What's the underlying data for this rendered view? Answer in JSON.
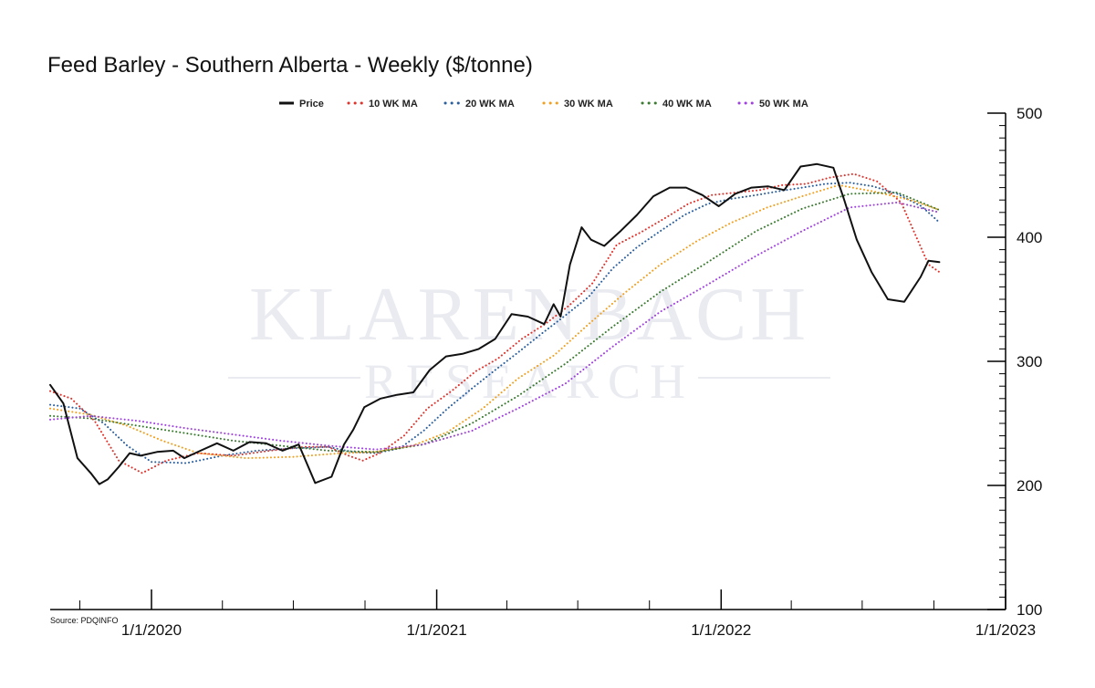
{
  "chart_data": {
    "type": "line",
    "title": "Feed Barley - Southern Alberta - Weekly ($/tonne)",
    "source": "Source: PDQINFO",
    "watermark": {
      "line1": "KLARENBACH",
      "line2": "RESEARCH"
    },
    "xlabel": "",
    "ylabel": "",
    "xlim": [
      "2019-08-24",
      "2023-01-01"
    ],
    "ylim": [
      100,
      500
    ],
    "y_ticks": [
      100,
      200,
      300,
      400,
      500
    ],
    "x_tick_labels": [
      {
        "date": "2020-01-01",
        "label": "1/1/2020"
      },
      {
        "date": "2021-01-01",
        "label": "1/1/2021"
      },
      {
        "date": "2022-01-01",
        "label": "1/1/2022"
      },
      {
        "date": "2023-01-01",
        "label": "1/1/2023"
      }
    ],
    "y_axis_position": "right",
    "grid": false,
    "legend_position": "top-center",
    "series": [
      {
        "name": "Price",
        "style": "solid",
        "color": "#111111",
        "x": [
          "2019-08-24",
          "2019-09-10",
          "2019-09-28",
          "2019-10-15",
          "2019-10-26",
          "2019-11-06",
          "2019-11-20",
          "2019-12-04",
          "2019-12-18",
          "2020-01-08",
          "2020-01-29",
          "2020-02-12",
          "2020-03-04",
          "2020-03-25",
          "2020-04-15",
          "2020-05-06",
          "2020-05-27",
          "2020-06-17",
          "2020-07-08",
          "2020-07-29",
          "2020-08-19",
          "2020-09-04",
          "2020-09-16",
          "2020-09-30",
          "2020-10-21",
          "2020-11-11",
          "2020-12-02",
          "2020-12-23",
          "2021-01-13",
          "2021-02-03",
          "2021-02-24",
          "2021-03-17",
          "2021-04-07",
          "2021-04-28",
          "2021-05-19",
          "2021-05-31",
          "2021-06-09",
          "2021-06-21",
          "2021-07-06",
          "2021-07-18",
          "2021-08-04",
          "2021-08-25",
          "2021-09-15",
          "2021-10-06",
          "2021-10-27",
          "2021-11-17",
          "2021-12-08",
          "2021-12-29",
          "2022-01-19",
          "2022-02-09",
          "2022-03-02",
          "2022-03-23",
          "2022-04-13",
          "2022-05-04",
          "2022-05-25",
          "2022-06-08",
          "2022-06-24",
          "2022-07-13",
          "2022-08-03",
          "2022-08-24",
          "2022-09-14",
          "2022-09-24",
          "2022-10-08"
        ],
        "values": [
          281,
          266,
          222,
          210,
          201,
          205,
          215,
          226,
          224,
          227,
          228,
          222,
          228,
          234,
          228,
          235,
          234,
          228,
          233,
          202,
          207,
          233,
          245,
          263,
          270,
          273,
          275,
          293,
          304,
          306,
          310,
          318,
          338,
          336,
          330,
          346,
          336,
          378,
          408,
          398,
          393,
          405,
          418,
          433,
          440,
          440,
          434,
          425,
          435,
          440,
          441,
          438,
          457,
          459,
          456,
          430,
          398,
          372,
          350,
          348,
          368,
          381,
          380
        ]
      },
      {
        "name": "10 WK MA",
        "style": "dotted",
        "color": "#e0312a",
        "x": [
          "2019-08-24",
          "2019-09-20",
          "2019-10-20",
          "2019-11-20",
          "2019-12-20",
          "2020-01-20",
          "2020-03-01",
          "2020-04-15",
          "2020-06-01",
          "2020-07-15",
          "2020-08-15",
          "2020-09-10",
          "2020-09-28",
          "2020-10-20",
          "2020-11-20",
          "2020-12-20",
          "2021-01-20",
          "2021-02-20",
          "2021-03-20",
          "2021-04-20",
          "2021-05-20",
          "2021-06-20",
          "2021-07-20",
          "2021-08-20",
          "2021-09-20",
          "2021-10-20",
          "2021-11-20",
          "2021-12-20",
          "2022-01-20",
          "2022-02-20",
          "2022-03-20",
          "2022-04-20",
          "2022-05-20",
          "2022-06-20",
          "2022-07-20",
          "2022-08-20",
          "2022-09-10",
          "2022-09-24",
          "2022-10-08"
        ],
        "values": [
          276,
          270,
          252,
          220,
          210,
          220,
          226,
          224,
          228,
          231,
          231,
          224,
          220,
          226,
          240,
          262,
          276,
          292,
          302,
          318,
          330,
          345,
          363,
          394,
          404,
          415,
          427,
          434,
          436,
          438,
          442,
          443,
          448,
          451,
          445,
          428,
          398,
          378,
          372
        ]
      },
      {
        "name": "20 WK MA",
        "style": "dotted",
        "color": "#2a5f9e",
        "x": [
          "2019-08-24",
          "2019-10-01",
          "2019-11-01",
          "2019-12-01",
          "2020-01-01",
          "2020-02-15",
          "2020-04-01",
          "2020-05-15",
          "2020-07-01",
          "2020-08-15",
          "2020-09-15",
          "2020-10-15",
          "2020-11-15",
          "2020-12-15",
          "2021-01-15",
          "2021-02-15",
          "2021-03-15",
          "2021-04-15",
          "2021-05-15",
          "2021-06-15",
          "2021-07-15",
          "2021-08-15",
          "2021-09-15",
          "2021-10-15",
          "2021-11-15",
          "2021-12-15",
          "2022-01-15",
          "2022-02-15",
          "2022-03-15",
          "2022-04-15",
          "2022-05-15",
          "2022-06-15",
          "2022-07-15",
          "2022-08-15",
          "2022-09-15",
          "2022-10-08"
        ],
        "values": [
          265,
          262,
          250,
          232,
          219,
          218,
          224,
          228,
          230,
          231,
          227,
          226,
          230,
          244,
          262,
          278,
          292,
          307,
          322,
          337,
          352,
          375,
          392,
          405,
          418,
          427,
          431,
          434,
          437,
          440,
          443,
          444,
          441,
          435,
          425,
          412
        ]
      },
      {
        "name": "30 WK MA",
        "style": "dotted",
        "color": "#f0a020",
        "x": [
          "2019-08-24",
          "2019-10-15",
          "2019-12-01",
          "2020-01-15",
          "2020-03-01",
          "2020-05-01",
          "2020-07-01",
          "2020-09-01",
          "2020-10-15",
          "2020-12-01",
          "2021-01-15",
          "2021-03-01",
          "2021-04-15",
          "2021-06-01",
          "2021-07-15",
          "2021-09-01",
          "2021-10-15",
          "2021-12-01",
          "2022-01-15",
          "2022-03-01",
          "2022-04-15",
          "2022-06-01",
          "2022-07-15",
          "2022-09-01",
          "2022-10-08"
        ],
        "values": [
          262,
          257,
          248,
          236,
          226,
          222,
          223,
          226,
          227,
          232,
          243,
          262,
          286,
          305,
          330,
          356,
          378,
          397,
          412,
          424,
          433,
          442,
          437,
          430,
          422
        ]
      },
      {
        "name": "40 WK MA",
        "style": "dotted",
        "color": "#3a7a30",
        "x": [
          "2019-08-24",
          "2019-10-15",
          "2019-12-15",
          "2020-02-15",
          "2020-04-15",
          "2020-06-15",
          "2020-08-15",
          "2020-10-15",
          "2020-12-15",
          "2021-02-15",
          "2021-04-15",
          "2021-06-15",
          "2021-08-15",
          "2021-10-15",
          "2021-12-15",
          "2022-02-15",
          "2022-04-15",
          "2022-06-15",
          "2022-08-15",
          "2022-10-08"
        ],
        "values": [
          256,
          254,
          248,
          242,
          236,
          232,
          228,
          227,
          233,
          250,
          272,
          298,
          328,
          356,
          380,
          405,
          423,
          435,
          436,
          422
        ]
      },
      {
        "name": "50 WK MA",
        "style": "dotted",
        "color": "#a040e0",
        "x": [
          "2019-08-24",
          "2019-10-15",
          "2019-12-15",
          "2020-02-15",
          "2020-04-15",
          "2020-06-15",
          "2020-08-15",
          "2020-10-15",
          "2020-12-15",
          "2021-02-15",
          "2021-04-15",
          "2021-06-15",
          "2021-08-15",
          "2021-10-15",
          "2021-12-15",
          "2022-02-15",
          "2022-04-15",
          "2022-06-15",
          "2022-08-15",
          "2022-10-08"
        ],
        "values": [
          253,
          256,
          252,
          246,
          241,
          236,
          232,
          229,
          233,
          244,
          262,
          282,
          312,
          340,
          362,
          385,
          405,
          424,
          428,
          420
        ]
      }
    ]
  }
}
